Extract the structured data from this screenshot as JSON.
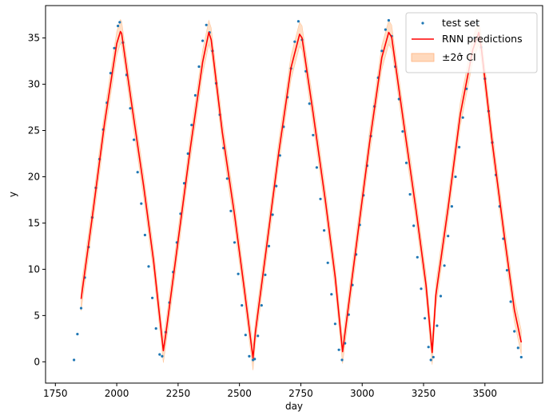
{
  "chart_data": {
    "type": "scatter",
    "xlabel": "day",
    "ylabel": "y",
    "xlim": [
      1710,
      3735
    ],
    "ylim": [
      -2.3,
      38.5
    ],
    "xticks": [
      1750,
      2000,
      2250,
      2500,
      2750,
      3000,
      3250,
      3500
    ],
    "yticks": [
      0,
      5,
      10,
      15,
      20,
      25,
      30,
      35
    ],
    "grid": false,
    "legend_position": "upper right",
    "legend": {
      "scatter": "test set",
      "line": "RNN predictions",
      "band": "±2σ̂ CI"
    },
    "colors": {
      "scatter": "#1f77b4",
      "line": "#ff0000",
      "band": "#ffd9bd"
    },
    "series": [
      {
        "name": "test set",
        "kind": "scatter",
        "x": [
          1826,
          1840,
          1855,
          1870,
          1885,
          1900,
          1915,
          1930,
          1945,
          1960,
          1975,
          1990,
          2005,
          2012,
          2025,
          2040,
          2055,
          2070,
          2085,
          2100,
          2115,
          2130,
          2145,
          2160,
          2175,
          2185,
          2200,
          2215,
          2230,
          2245,
          2260,
          2275,
          2290,
          2305,
          2320,
          2335,
          2350,
          2365,
          2378,
          2390,
          2405,
          2420,
          2435,
          2450,
          2465,
          2480,
          2495,
          2510,
          2525,
          2540,
          2555,
          2562,
          2575,
          2590,
          2605,
          2620,
          2635,
          2650,
          2665,
          2680,
          2695,
          2710,
          2725,
          2740,
          2755,
          2770,
          2785,
          2800,
          2815,
          2830,
          2845,
          2860,
          2875,
          2890,
          2905,
          2918,
          2930,
          2945,
          2960,
          2975,
          2990,
          3005,
          3020,
          3035,
          3050,
          3065,
          3080,
          3095,
          3108,
          3120,
          3135,
          3150,
          3165,
          3180,
          3195,
          3210,
          3225,
          3240,
          3255,
          3270,
          3280,
          3290,
          3305,
          3320,
          3335,
          3350,
          3365,
          3380,
          3395,
          3410,
          3425,
          3440,
          3455,
          3470,
          3485,
          3500,
          3515,
          3530,
          3545,
          3560,
          3575,
          3590,
          3605,
          3620,
          3635,
          3648
        ],
        "y": [
          0.2,
          3.0,
          5.8,
          9.1,
          12.4,
          15.6,
          18.8,
          21.9,
          25.1,
          28.0,
          31.2,
          33.9,
          36.3,
          36.7,
          34.5,
          31.0,
          27.4,
          24.0,
          20.5,
          17.1,
          13.7,
          10.3,
          6.9,
          3.6,
          0.8,
          0.6,
          3.2,
          6.4,
          9.7,
          12.9,
          16.0,
          19.3,
          22.5,
          25.6,
          28.8,
          31.9,
          34.7,
          36.4,
          35.6,
          33.6,
          30.1,
          26.7,
          23.1,
          19.8,
          16.3,
          12.9,
          9.5,
          6.1,
          2.9,
          0.6,
          0.2,
          0.3,
          2.8,
          6.1,
          9.4,
          12.5,
          15.9,
          19.0,
          22.3,
          25.4,
          28.6,
          31.7,
          34.6,
          36.8,
          34.8,
          31.4,
          27.9,
          24.5,
          21.0,
          17.6,
          14.2,
          10.7,
          7.3,
          4.1,
          1.3,
          0.2,
          2.0,
          5.1,
          8.3,
          11.6,
          14.8,
          18.0,
          21.2,
          24.4,
          27.6,
          30.7,
          33.6,
          35.9,
          36.9,
          35.2,
          31.9,
          28.4,
          24.9,
          21.5,
          18.1,
          14.7,
          11.3,
          7.9,
          4.7,
          1.6,
          0.2,
          0.5,
          3.9,
          7.1,
          10.4,
          13.6,
          16.8,
          20.0,
          23.2,
          26.4,
          29.5,
          32.5,
          35.0,
          36.6,
          34.0,
          30.6,
          27.1,
          23.7,
          20.2,
          16.8,
          13.3,
          9.9,
          6.5,
          3.3,
          1.5,
          0.5
        ]
      },
      {
        "name": "RNN predictions",
        "kind": "line",
        "x": [
          1855,
          1900,
          1950,
          2000,
          2015,
          2020,
          2060,
          2110,
          2150,
          2190,
          2200,
          2250,
          2300,
          2350,
          2375,
          2385,
          2430,
          2480,
          2520,
          2555,
          2565,
          2610,
          2660,
          2710,
          2745,
          2755,
          2800,
          2850,
          2890,
          2920,
          2930,
          2980,
          3030,
          3080,
          3108,
          3120,
          3170,
          3220,
          3260,
          3285,
          3300,
          3350,
          3400,
          3450,
          3475,
          3485,
          3530,
          3580,
          3620,
          3648
        ],
        "y": [
          6.8,
          15.6,
          25.7,
          34.4,
          35.7,
          35.5,
          28.0,
          18.9,
          10.9,
          1.2,
          3.0,
          13.1,
          23.1,
          32.4,
          35.6,
          34.8,
          24.8,
          15.9,
          7.8,
          0.4,
          3.2,
          12.3,
          22.6,
          31.8,
          35.4,
          35.0,
          26.9,
          17.4,
          9.2,
          1.1,
          3.1,
          13.4,
          23.7,
          32.9,
          35.6,
          35.1,
          25.6,
          16.3,
          8.3,
          1.0,
          7.2,
          16.6,
          26.8,
          33.7,
          35.6,
          34.0,
          23.7,
          13.4,
          5.6,
          2.1
        ]
      },
      {
        "name": "±2σ̂ CI",
        "kind": "band",
        "halfwidth": 1.3
      }
    ]
  }
}
